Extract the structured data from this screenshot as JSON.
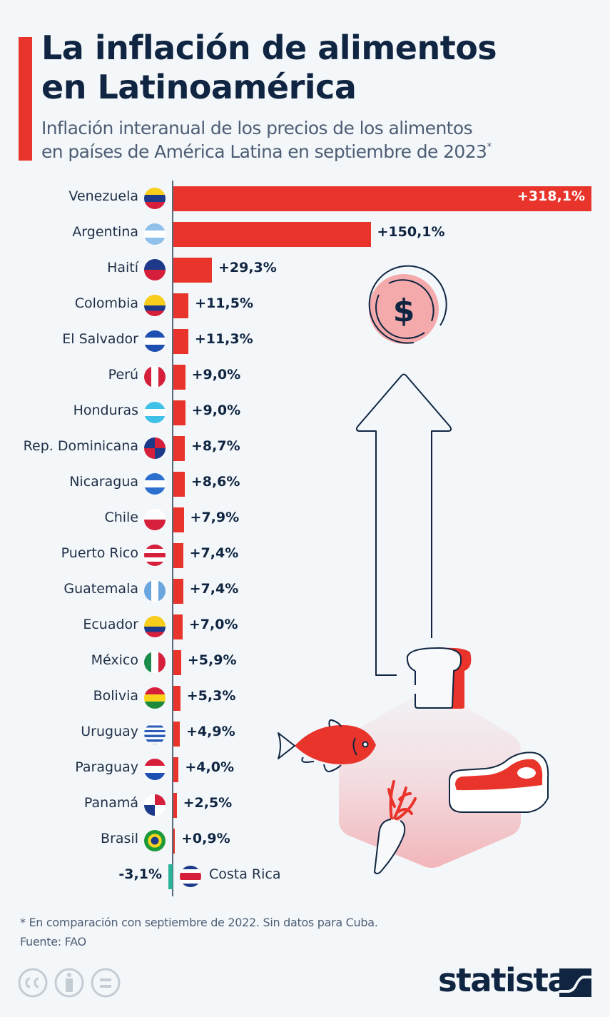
{
  "header": {
    "title_line1": "La inflación de alimentos",
    "title_line2": "en Latinoamérica",
    "subtitle_line1": "Inflación interanual de los precios de los alimentos",
    "subtitle_line2": "en países de América Latina en septiembre de 2023",
    "subtitle_marker": "*"
  },
  "colors": {
    "accent": "#e8342a",
    "negative": "#2bb39a",
    "text_dark": "#0f2541",
    "text_muted": "#4d5e74",
    "background": "#f4f7fa"
  },
  "chart_data": {
    "type": "bar",
    "orientation": "horizontal",
    "title": "La inflación de alimentos en Latinoamérica",
    "subtitle": "Inflación interanual de los precios de los alimentos en países de América Latina en septiembre de 2023*",
    "xlabel": "",
    "ylabel": "",
    "unit": "%",
    "grid": false,
    "legend": null,
    "categories": [
      "Venezuela",
      "Argentina",
      "Haití",
      "Colombia",
      "El Salvador",
      "Perú",
      "Honduras",
      "Rep. Dominicana",
      "Nicaragua",
      "Chile",
      "Puerto Rico",
      "Guatemala",
      "Ecuador",
      "México",
      "Bolivia",
      "Uruguay",
      "Paraguay",
      "Panamá",
      "Brasil",
      "Costa Rica"
    ],
    "values": [
      318.1,
      150.1,
      29.3,
      11.5,
      11.3,
      9.0,
      9.0,
      8.7,
      8.6,
      7.9,
      7.4,
      7.4,
      7.0,
      5.9,
      5.3,
      4.9,
      4.0,
      2.5,
      0.9,
      -3.1
    ],
    "value_labels": [
      "+318,1%",
      "+150,1%",
      "+29,3%",
      "+11,5%",
      "+11,3%",
      "+9,0%",
      "+9,0%",
      "+8,7%",
      "+8,6%",
      "+7,9%",
      "+7,4%",
      "+7,4%",
      "+7,0%",
      "+5,9%",
      "+5,3%",
      "+4,9%",
      "+4,0%",
      "+2,5%",
      "+0,9%",
      "-3,1%"
    ],
    "xlim": [
      -3.1,
      318.1
    ]
  },
  "rows": [
    {
      "country": "Venezuela",
      "flag": "venezuela-flag",
      "label": "+318,1%"
    },
    {
      "country": "Argentina",
      "flag": "argentina-flag",
      "label": "+150,1%"
    },
    {
      "country": "Haití",
      "flag": "haiti-flag",
      "label": "+29,3%"
    },
    {
      "country": "Colombia",
      "flag": "colombia-flag",
      "label": "+11,5%"
    },
    {
      "country": "El Salvador",
      "flag": "el-salvador-flag",
      "label": "+11,3%"
    },
    {
      "country": "Perú",
      "flag": "peru-flag",
      "label": "+9,0%"
    },
    {
      "country": "Honduras",
      "flag": "honduras-flag",
      "label": "+9,0%"
    },
    {
      "country": "Rep. Dominicana",
      "flag": "dominican-republic-flag",
      "label": "+8,7%"
    },
    {
      "country": "Nicaragua",
      "flag": "nicaragua-flag",
      "label": "+8,6%"
    },
    {
      "country": "Chile",
      "flag": "chile-flag",
      "label": "+7,9%"
    },
    {
      "country": "Puerto Rico",
      "flag": "puerto-rico-flag",
      "label": "+7,4%"
    },
    {
      "country": "Guatemala",
      "flag": "guatemala-flag",
      "label": "+7,4%"
    },
    {
      "country": "Ecuador",
      "flag": "ecuador-flag",
      "label": "+7,0%"
    },
    {
      "country": "México",
      "flag": "mexico-flag",
      "label": "+5,9%"
    },
    {
      "country": "Bolivia",
      "flag": "bolivia-flag",
      "label": "+5,3%"
    },
    {
      "country": "Uruguay",
      "flag": "uruguay-flag",
      "label": "+4,9%"
    },
    {
      "country": "Paraguay",
      "flag": "paraguay-flag",
      "label": "+4,0%"
    },
    {
      "country": "Panamá",
      "flag": "panama-flag",
      "label": "+2,5%"
    },
    {
      "country": "Brasil",
      "flag": "brazil-flag",
      "label": "+0,9%"
    },
    {
      "country": "Costa Rica",
      "flag": "costa-rica-flag",
      "label": "-3,1%"
    }
  ],
  "illustration": {
    "coin_symbol": "$"
  },
  "footer": {
    "footnote": "* En comparación con septiembre de 2022. Sin datos para Cuba.",
    "source": "Fuente: FAO",
    "license_icons": [
      "cc-icon",
      "attribution-icon",
      "no-derivatives-icon"
    ],
    "logo_text": "statista"
  }
}
